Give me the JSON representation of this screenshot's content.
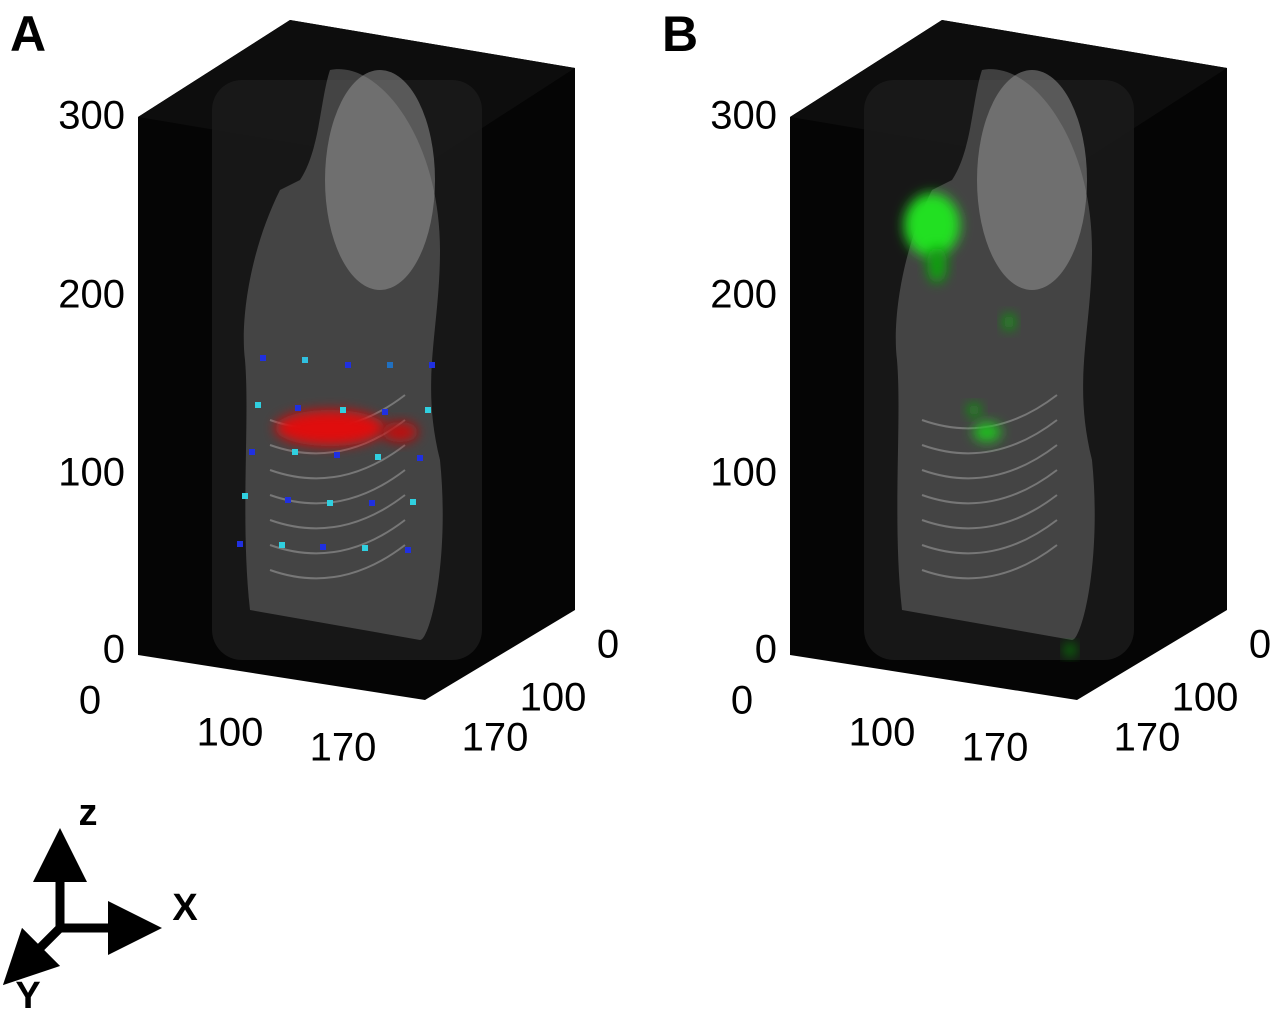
{
  "panels": [
    {
      "label": "A",
      "z_ticks": [
        "300",
        "200",
        "100",
        "0"
      ],
      "x_ticks": [
        "0",
        "100",
        "170"
      ],
      "y_ticks": [
        "0",
        "100",
        "170"
      ]
    },
    {
      "label": "B",
      "z_ticks": [
        "300",
        "200",
        "100",
        "0"
      ],
      "x_ticks": [
        "0",
        "100",
        "170"
      ],
      "y_ticks": [
        "0",
        "100",
        "170"
      ]
    }
  ],
  "axes_legend": {
    "z": "z",
    "x": "X",
    "y": "Y"
  }
}
